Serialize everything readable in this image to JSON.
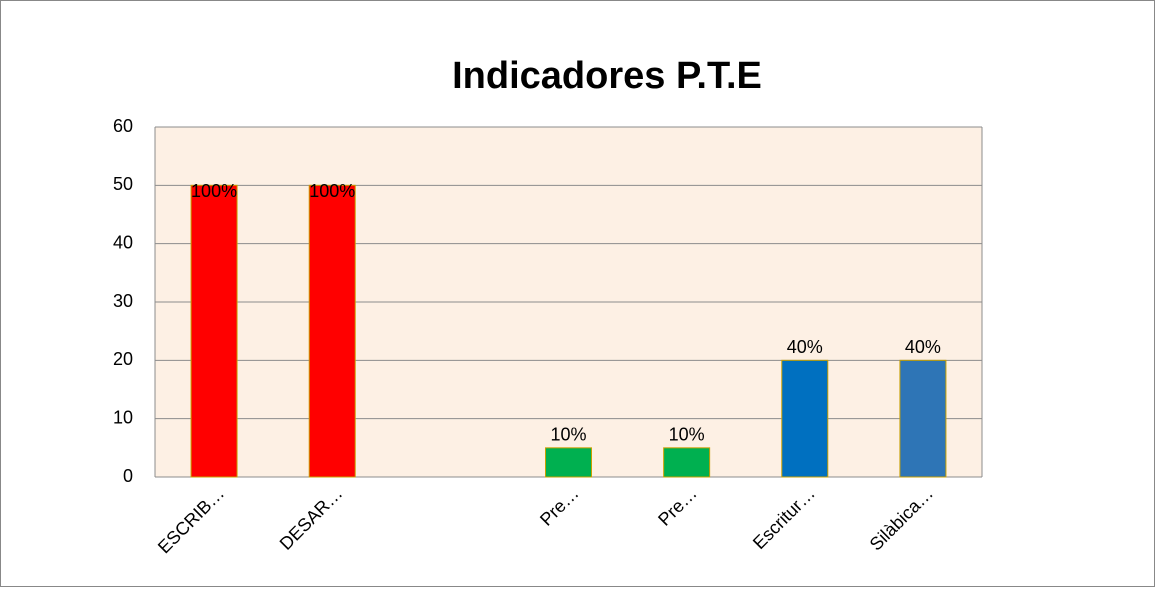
{
  "chart_data": {
    "type": "bar",
    "title": "Indicadores P.T.E",
    "categories": [
      "ESCRIB…",
      "DESAR…",
      null,
      "Pre…",
      "Pre…",
      "Escritur…",
      "Silàbica…"
    ],
    "values": [
      50,
      50,
      null,
      5,
      5,
      20,
      20
    ],
    "value_labels": [
      "100%",
      "100%",
      null,
      "10%",
      "10%",
      "40%",
      "40%"
    ],
    "colors": [
      "#ff0000",
      "#ff0000",
      null,
      "#00b050",
      "#00b050",
      "#0070c0",
      "#2e75b6"
    ],
    "ylim": [
      0,
      60
    ],
    "yticks": [
      0,
      10,
      20,
      30,
      40,
      50,
      60
    ],
    "grid": true
  }
}
